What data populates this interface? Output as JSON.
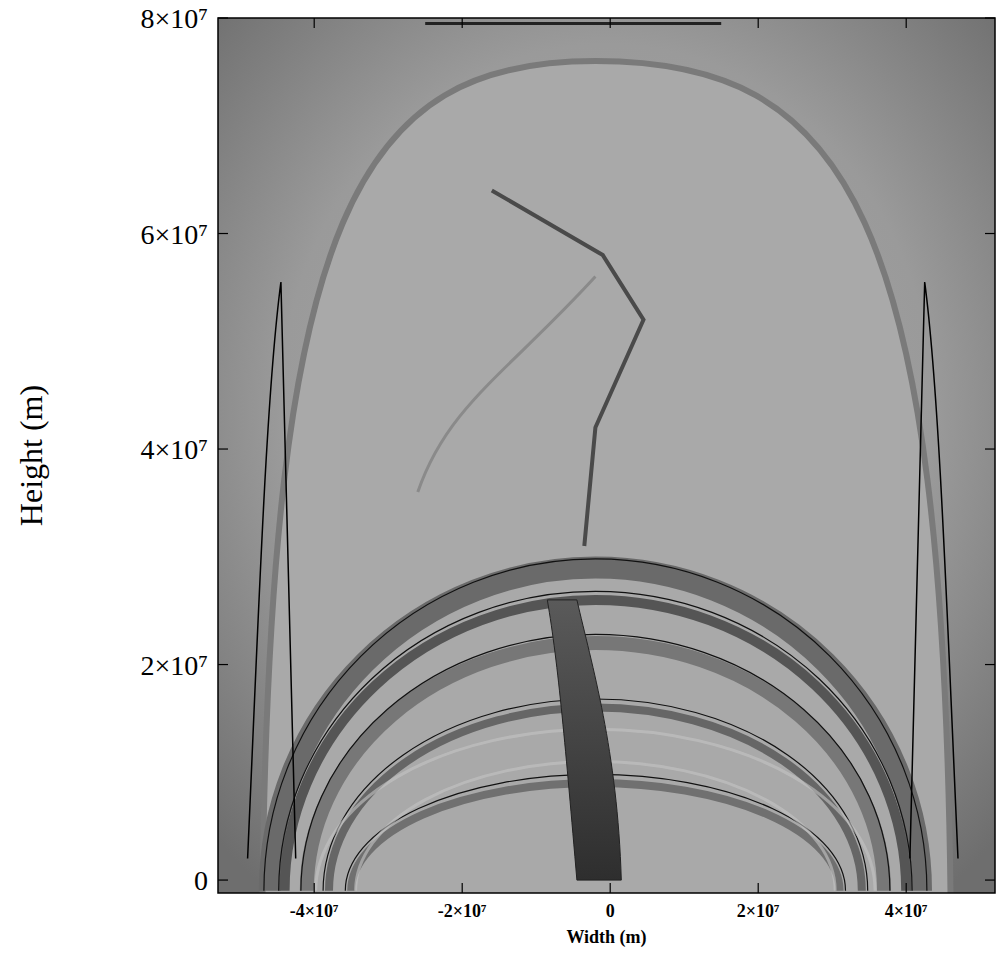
{
  "chart_data": {
    "type": "image",
    "x_label": "Width (m)",
    "y_label": "Height (m)",
    "xlim": [
      -53000000,
      52000000
    ],
    "ylim": [
      -1200000,
      80000000
    ],
    "xticks": [
      {
        "value": -40000000,
        "label": "-4×10⁷"
      },
      {
        "value": -20000000,
        "label": "-2×10⁷"
      },
      0,
      {
        "value": 20000000,
        "label": "2×10⁷"
      },
      {
        "value": 40000000,
        "label": "4×10⁷"
      }
    ],
    "yticks": [
      0,
      {
        "value": 20000000,
        "label": "2×10⁷"
      },
      {
        "value": 40000000,
        "label": "4×10⁷"
      },
      {
        "value": 60000000,
        "label": "6×10⁷"
      },
      {
        "value": 80000000,
        "label": "8×10⁷"
      }
    ]
  }
}
